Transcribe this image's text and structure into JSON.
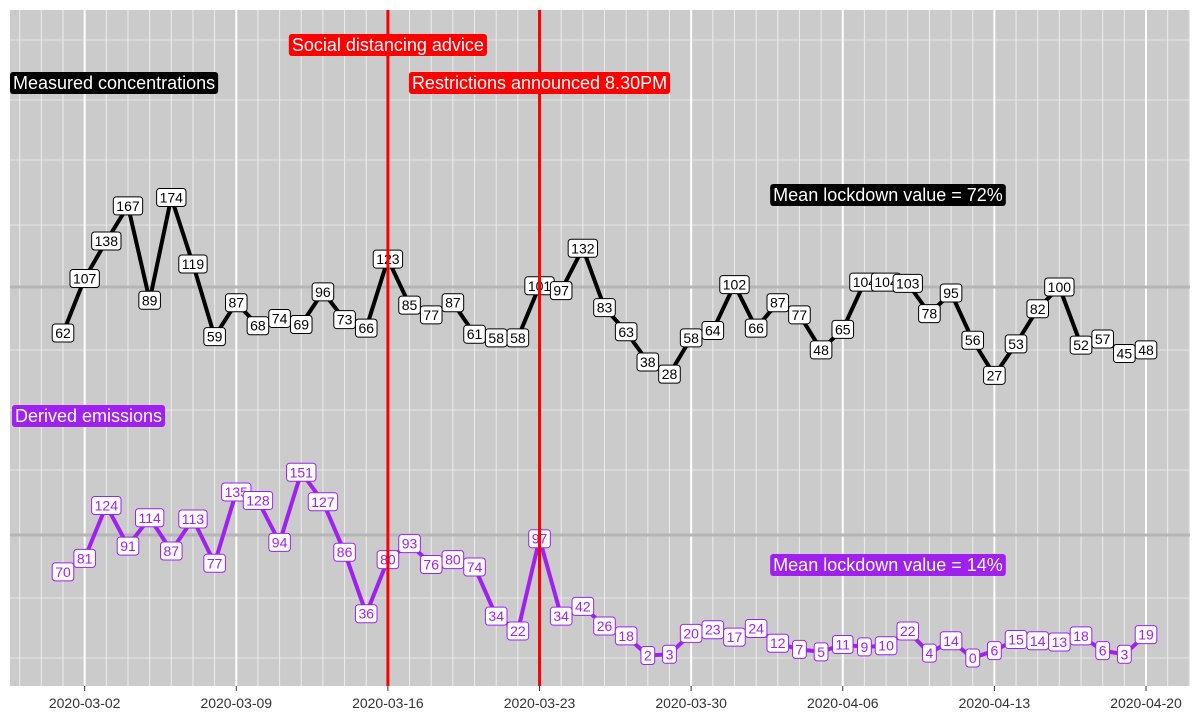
{
  "chart_data": {
    "type": "line",
    "x": [
      "2020-03-01",
      "2020-03-02",
      "2020-03-03",
      "2020-03-04",
      "2020-03-05",
      "2020-03-06",
      "2020-03-07",
      "2020-03-08",
      "2020-03-09",
      "2020-03-10",
      "2020-03-11",
      "2020-03-12",
      "2020-03-13",
      "2020-03-14",
      "2020-03-15",
      "2020-03-16",
      "2020-03-17",
      "2020-03-18",
      "2020-03-19",
      "2020-03-20",
      "2020-03-21",
      "2020-03-22",
      "2020-03-23",
      "2020-03-24",
      "2020-03-25",
      "2020-03-26",
      "2020-03-27",
      "2020-03-28",
      "2020-03-29",
      "2020-03-30",
      "2020-03-31",
      "2020-04-01",
      "2020-04-02",
      "2020-04-03",
      "2020-04-04",
      "2020-04-05",
      "2020-04-06",
      "2020-04-07",
      "2020-04-08",
      "2020-04-09",
      "2020-04-10",
      "2020-04-11",
      "2020-04-12",
      "2020-04-13",
      "2020-04-14",
      "2020-04-15",
      "2020-04-16",
      "2020-04-17",
      "2020-04-18",
      "2020-04-19",
      "2020-04-20"
    ],
    "xticks": [
      "2020-03-02",
      "2020-03-09",
      "2020-03-16",
      "2020-03-23",
      "2020-03-30",
      "2020-04-06",
      "2020-04-13",
      "2020-04-20"
    ],
    "grid": true,
    "series": [
      {
        "name": "Measured concentrations",
        "color": "#000000",
        "ylim": [
          0,
          300
        ],
        "annotation": "Mean lockdown value = 72%",
        "values": [
          62,
          107,
          138,
          167,
          89,
          174,
          119,
          59,
          87,
          68,
          74,
          69,
          96,
          73,
          66,
          123,
          85,
          77,
          87,
          61,
          58,
          58,
          101,
          97,
          132,
          83,
          63,
          38,
          28,
          58,
          64,
          102,
          66,
          87,
          77,
          48,
          65,
          104,
          104,
          103,
          78,
          95,
          56,
          27,
          53,
          82,
          100,
          52,
          57,
          45,
          48
        ]
      },
      {
        "name": "Derived emissions",
        "color": "#a020f0",
        "ylim": [
          0,
          150
        ],
        "annotation": "Mean lockdown value = 14%",
        "values": [
          70,
          81,
          124,
          91,
          114,
          87,
          113,
          77,
          135,
          128,
          94,
          151,
          127,
          86,
          36,
          80,
          93,
          76,
          80,
          74,
          34,
          22,
          97,
          34,
          42,
          26,
          18,
          2,
          3,
          20,
          23,
          17,
          24,
          12,
          7,
          5,
          11,
          9,
          10,
          22,
          4,
          14,
          0,
          6,
          15,
          14,
          13,
          18,
          6,
          3,
          19
        ]
      }
    ],
    "events": [
      {
        "x": "2020-03-16",
        "label": "Social distancing advice"
      },
      {
        "x": "2020-03-23",
        "label": "Restrictions announced 8.30PM"
      }
    ]
  }
}
